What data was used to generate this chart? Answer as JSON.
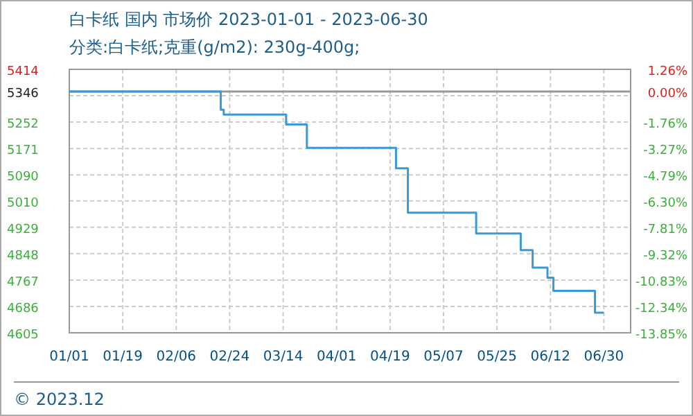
{
  "chart_data": {
    "type": "step",
    "title": "白卡纸 国内 市场价 2023-01-01 - 2023-06-30",
    "subtitle": "分类:白卡纸;克重(g/m2): 230g-400g;",
    "x": [
      "2023-01-01",
      "2023-02-20",
      "2023-02-21",
      "2023-02-22",
      "2023-03-14",
      "2023-03-15",
      "2023-03-21",
      "2023-03-22",
      "2023-04-20",
      "2023-04-21",
      "2023-04-24",
      "2023-04-25",
      "2023-05-17",
      "2023-05-18",
      "2023-06-01",
      "2023-06-02",
      "2023-06-05",
      "2023-06-06",
      "2023-06-10",
      "2023-06-11",
      "2023-06-13",
      "2023-06-26",
      "2023-06-27",
      "2023-06-30"
    ],
    "series": [
      {
        "color": "#3a9ad9",
        "values": [
          5346,
          5346,
          5290,
          5275,
          5275,
          5245,
          5245,
          5173,
          5173,
          5110,
          5110,
          4974,
          4974,
          4910,
          4910,
          4859,
          4859,
          4805,
          4805,
          4774,
          4734,
          4734,
          4667,
          4667
        ]
      }
    ],
    "xlim": [
      "2023-01-01",
      "2023-07-09"
    ],
    "xticks": [
      {
        "value": "2023-01-01",
        "label": "01/01"
      },
      {
        "value": "2023-01-19",
        "label": "01/19"
      },
      {
        "value": "2023-02-06",
        "label": "02/06"
      },
      {
        "value": "2023-02-24",
        "label": "02/24"
      },
      {
        "value": "2023-03-14",
        "label": "03/14"
      },
      {
        "value": "2023-04-01",
        "label": "04/01"
      },
      {
        "value": "2023-04-19",
        "label": "04/19"
      },
      {
        "value": "2023-05-07",
        "label": "05/07"
      },
      {
        "value": "2023-05-25",
        "label": "05/25"
      },
      {
        "value": "2023-06-12",
        "label": "06/12"
      },
      {
        "value": "2023-06-30",
        "label": "06/30"
      }
    ],
    "ylim": [
      4605,
      5414
    ],
    "yticks": [
      5414,
      {
        "value": 5333,
        "label": null
      },
      5252,
      5171,
      5090,
      5010,
      4929,
      4848,
      4767,
      4686,
      4605
    ],
    "y2lim": [
      -13.85,
      1.26
    ],
    "y2ticks": [
      {
        "value": 1.26,
        "label": "1.26%"
      },
      {
        "value": 0,
        "label": "0.00%"
      },
      {
        "value": -1.76,
        "label": "-1.76%"
      },
      {
        "value": -3.27,
        "label": "-3.27%"
      },
      {
        "value": -4.79,
        "label": "-4.79%"
      },
      {
        "value": -6.3,
        "label": "-6.30%"
      },
      {
        "value": -7.81,
        "label": "-7.81%"
      },
      {
        "value": -9.32,
        "label": "-9.32%"
      },
      {
        "value": -10.83,
        "label": "-10.83%"
      },
      {
        "value": -12.34,
        "label": "-12.34%"
      },
      {
        "value": -13.85,
        "label": "-13.85%"
      }
    ],
    "ref_lines": [
      {
        "axis": "y",
        "value": 5346,
        "label": "5346",
        "color": "#999999"
      }
    ],
    "grid": true,
    "annotations": [
      "© 2023.12"
    ]
  }
}
